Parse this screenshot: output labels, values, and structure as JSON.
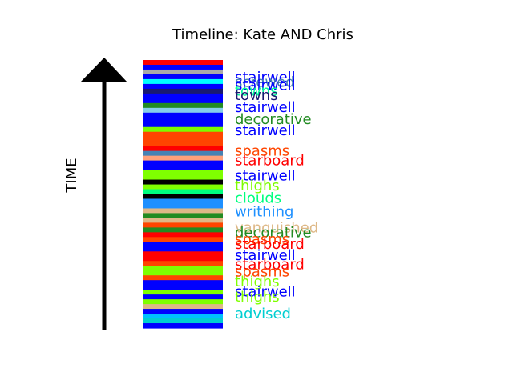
{
  "chart_data": {
    "type": "timeline",
    "title": "Timeline: Kate AND Chris",
    "ylabel": "TIME",
    "stripes": [
      "#ff0000",
      "#0000ff",
      "#a9a9a9",
      "#0000ff",
      "#00ffff",
      "#0000ff",
      "#191970",
      "#0000ff",
      "#0000ff",
      "#228b22",
      "#87ceeb",
      "#0000ff",
      "#0000ff",
      "#0000ff",
      "#7cfc00",
      "#ff4500",
      "#ff4500",
      "#ff4500",
      "#ff0000",
      "#4682b4",
      "#ffa07a",
      "#0000ff",
      "#0000ff",
      "#7fff00",
      "#7fff00",
      "#000000",
      "#7fff00",
      "#00ff7f",
      "#000000",
      "#1e90ff",
      "#1e90ff",
      "#deb887",
      "#228b22",
      "#deb887",
      "#ff4500",
      "#228b22",
      "#ff0000",
      "#ff4500",
      "#0000ff",
      "#0000ff",
      "#ff0000",
      "#ff0000",
      "#ff4500",
      "#7fff00",
      "#7fff00",
      "#ff4500",
      "#0000ff",
      "#0000ff",
      "#7fff00",
      "#0000ff",
      "#7fff00",
      "#deb887",
      "#0000ff",
      "#00bfff",
      "#00ced1",
      "#0000ff"
    ],
    "labels": [
      {
        "text": "stairwell",
        "color": "#0000ff",
        "pos": 0.036
      },
      {
        "text": "screwed",
        "color": "#4682b4",
        "pos": 0.055
      },
      {
        "text": "stairwell",
        "color": "#0000ff",
        "pos": 0.068
      },
      {
        "text": "towns",
        "color": "#00fa9a",
        "pos": 0.09
      },
      {
        "text": "towns",
        "color": "#191970",
        "pos": 0.108
      },
      {
        "text": "stairwell",
        "color": "#0000ff",
        "pos": 0.155
      },
      {
        "text": "decorative",
        "color": "#228b22",
        "pos": 0.202
      },
      {
        "text": "stairwell",
        "color": "#0000ff",
        "pos": 0.247
      },
      {
        "text": "spasms",
        "color": "#ff4500",
        "pos": 0.328
      },
      {
        "text": "starboard",
        "color": "#ff0000",
        "pos": 0.365
      },
      {
        "text": "stairwell",
        "color": "#0000ff",
        "pos": 0.426
      },
      {
        "text": "thighs",
        "color": "#7cfc00",
        "pos": 0.465
      },
      {
        "text": "clouds",
        "color": "#00ff7f",
        "pos": 0.515
      },
      {
        "text": "writhing",
        "color": "#1e90ff",
        "pos": 0.568
      },
      {
        "text": "vanquished",
        "color": "#deb887",
        "pos": 0.632
      },
      {
        "text": "decorative",
        "color": "#228b22",
        "pos": 0.65
      },
      {
        "text": "spasms",
        "color": "#ff4500",
        "pos": 0.678
      },
      {
        "text": "starboard",
        "color": "#ff0000",
        "pos": 0.696
      },
      {
        "text": "stairwell",
        "color": "#0000ff",
        "pos": 0.74
      },
      {
        "text": "starboard",
        "color": "#ff0000",
        "pos": 0.777
      },
      {
        "text": "spasms",
        "color": "#ff4500",
        "pos": 0.805
      },
      {
        "text": "thighs",
        "color": "#7fff00",
        "pos": 0.845
      },
      {
        "text": "stairwell",
        "color": "#0000ff",
        "pos": 0.885
      },
      {
        "text": "thighs",
        "color": "#7fff00",
        "pos": 0.905
      },
      {
        "text": "advised",
        "color": "#00ced1",
        "pos": 0.972
      }
    ]
  }
}
